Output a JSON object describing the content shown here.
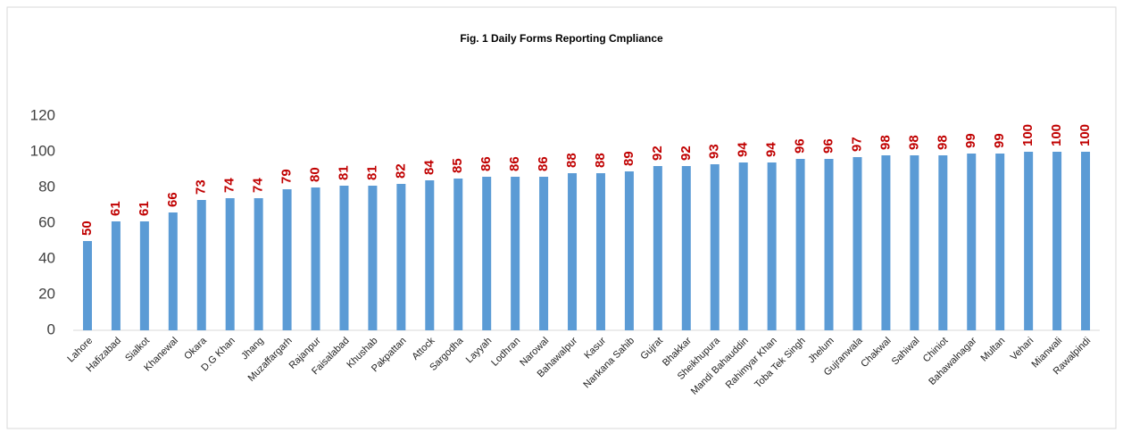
{
  "chart_data": {
    "type": "bar",
    "title": "Fig. 1 Daily Forms Reporting Cmpliance",
    "categories": [
      "Lahore",
      "Hafizabad",
      "Sialkot",
      "Khanewal",
      "Okara",
      "D.G Khan",
      "Jhang",
      "Muzaffargarh",
      "Rajanpur",
      "Faisalabad",
      "Khushab",
      "Pakpattan",
      "Attock",
      "Sargodha",
      "Layyah",
      "Lodhran",
      "Narowal",
      "Bahawalpur",
      "Kasur",
      "Nankana Sahib",
      "Gujrat",
      "Bhakkar",
      "Sheikhupura",
      "Mandi Bahauddin",
      "Rahimyar Khan",
      "Toba Tek Singh",
      "Jhelum",
      "Gujranwala",
      "Chakwal",
      "Sahiwal",
      "Chiniot",
      "Bahawalnagar",
      "Multan",
      "Vehari",
      "Mianwali",
      "Rawalpindi"
    ],
    "values": [
      50,
      61,
      61,
      66,
      73,
      74,
      74,
      79,
      80,
      81,
      81,
      82,
      84,
      85,
      86,
      86,
      86,
      88,
      88,
      89,
      92,
      92,
      93,
      94,
      94,
      96,
      96,
      97,
      98,
      98,
      98,
      99,
      99,
      100,
      100,
      100
    ],
    "color": "#5b9bd5",
    "label_color": "#c00000",
    "ylim": [
      0,
      120
    ],
    "yticks": [
      0,
      20,
      40,
      60,
      80,
      100,
      120
    ],
    "grid": false
  }
}
